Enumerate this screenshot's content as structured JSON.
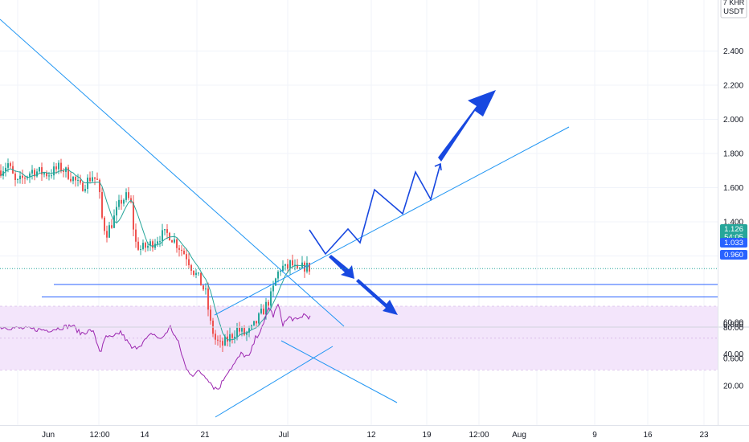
{
  "header": {
    "unit_line1": "7 KHR",
    "unit_line2": "USDT"
  },
  "price_axis": {
    "ticks": [
      "2.400",
      "2.200",
      "2.000",
      "1.800",
      "1.600",
      "1.400",
      "1.200",
      "0.800",
      "0.600"
    ]
  },
  "rsi_axis": {
    "ticks": [
      "60.00",
      "40.00",
      "20.00"
    ],
    "top_label": "80.00"
  },
  "time_axis": {
    "ticks": [
      "Jun",
      "12:00",
      "14",
      "21",
      "Jul",
      "12",
      "19",
      "12:00",
      "Aug",
      "9",
      "16",
      "23"
    ]
  },
  "price_badges": {
    "last": {
      "price": "1.126",
      "countdown": "54:05",
      "color": "#26a69a"
    },
    "level_1": {
      "price": "1.033",
      "color": "#2962ff"
    },
    "level_2": {
      "price": "0.960",
      "color": "#2962ff"
    }
  },
  "colors": {
    "up": "#26a69a",
    "down": "#ef5350",
    "ma": "#26a69a",
    "trendline": "#2196f3",
    "horizontal": "#2962ff",
    "arrow": "#1848e0",
    "rsi_line": "#9c27b0",
    "rsi_band": "#f3e5fb"
  },
  "chart_data": {
    "type": "candlestick",
    "symbol_unit": "USDT",
    "price_axis_range": [
      0.53,
      2.55
    ],
    "rsi_axis_range": [
      12,
      80
    ],
    "price_path": [
      [
        0,
        1.7
      ],
      [
        10,
        1.74
      ],
      [
        20,
        1.62
      ],
      [
        40,
        1.7
      ],
      [
        60,
        1.68
      ],
      [
        75,
        1.72
      ],
      [
        90,
        1.66
      ],
      [
        100,
        1.6
      ],
      [
        115,
        1.67
      ],
      [
        122,
        1.63
      ],
      [
        127,
        1.42
      ],
      [
        132,
        1.33
      ],
      [
        140,
        1.4
      ],
      [
        150,
        1.52
      ],
      [
        158,
        1.55
      ],
      [
        163,
        1.5
      ],
      [
        168,
        1.28
      ],
      [
        175,
        1.24
      ],
      [
        185,
        1.26
      ],
      [
        200,
        1.32
      ],
      [
        210,
        1.33
      ],
      [
        222,
        1.26
      ],
      [
        232,
        1.2
      ],
      [
        240,
        1.12
      ],
      [
        248,
        1.06
      ],
      [
        256,
        0.98
      ],
      [
        262,
        0.8
      ],
      [
        268,
        0.71
      ],
      [
        275,
        0.67
      ],
      [
        285,
        0.72
      ],
      [
        295,
        0.77
      ],
      [
        305,
        0.74
      ],
      [
        312,
        0.76
      ],
      [
        320,
        0.82
      ],
      [
        330,
        0.9
      ],
      [
        338,
        0.97
      ],
      [
        344,
        1.08
      ],
      [
        350,
        1.14
      ],
      [
        356,
        1.12
      ],
      [
        362,
        1.16
      ],
      [
        370,
        1.1
      ],
      [
        378,
        1.14
      ],
      [
        385,
        1.13
      ]
    ],
    "support_levels": [
      1.033,
      0.96
    ],
    "last_price": 1.126,
    "rsi_path": [
      [
        0,
        57
      ],
      [
        30,
        56
      ],
      [
        60,
        55
      ],
      [
        90,
        58
      ],
      [
        100,
        53
      ],
      [
        115,
        55
      ],
      [
        125,
        41
      ],
      [
        132,
        51
      ],
      [
        140,
        50
      ],
      [
        150,
        54
      ],
      [
        158,
        48
      ],
      [
        165,
        43
      ],
      [
        175,
        46
      ],
      [
        190,
        53
      ],
      [
        200,
        49
      ],
      [
        212,
        57
      ],
      [
        222,
        47
      ],
      [
        232,
        30
      ],
      [
        240,
        27
      ],
      [
        248,
        29
      ],
      [
        258,
        25
      ],
      [
        266,
        19
      ],
      [
        272,
        18
      ],
      [
        282,
        28
      ],
      [
        292,
        34
      ],
      [
        300,
        40
      ],
      [
        310,
        38
      ],
      [
        318,
        50
      ],
      [
        328,
        58
      ],
      [
        334,
        70
      ],
      [
        340,
        64
      ],
      [
        346,
        71
      ],
      [
        352,
        59
      ],
      [
        360,
        63
      ],
      [
        370,
        61
      ],
      [
        378,
        65
      ],
      [
        386,
        63
      ]
    ],
    "rsi_band": [
      30,
      70
    ]
  }
}
